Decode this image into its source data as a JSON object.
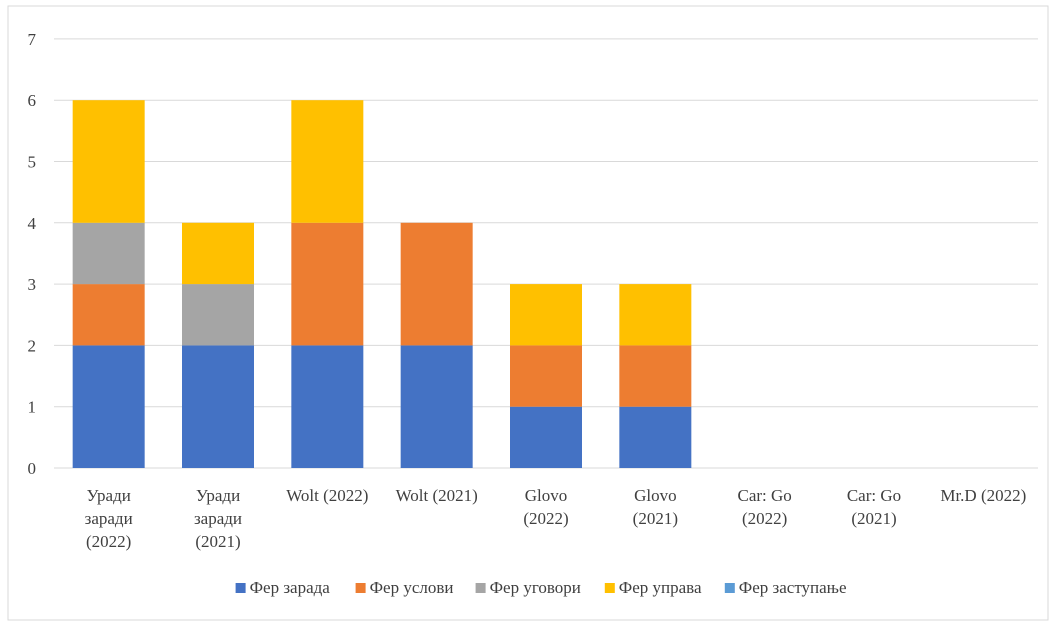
{
  "chart_data": {
    "type": "bar",
    "stacked": true,
    "categories": [
      [
        "Уради",
        "заради",
        "(2022)"
      ],
      [
        "Уради",
        "заради",
        "(2021)"
      ],
      [
        "Wolt (2022)"
      ],
      [
        "Wolt (2021)"
      ],
      [
        "Glovo",
        "(2022)"
      ],
      [
        "Glovo",
        "(2021)"
      ],
      [
        "Car: Go",
        "(2022)"
      ],
      [
        "Car: Go",
        "(2021)"
      ],
      [
        "Mr.D (2022)"
      ]
    ],
    "series": [
      {
        "name": "Фер зарада",
        "color": "#4472C4",
        "values": [
          2,
          2,
          2,
          2,
          1,
          1,
          0,
          0,
          0
        ]
      },
      {
        "name": "Фер услови",
        "color": "#ED7D31",
        "values": [
          1,
          0,
          2,
          2,
          1,
          1,
          0,
          0,
          0
        ]
      },
      {
        "name": "Фер уговори",
        "color": "#A5A5A5",
        "values": [
          1,
          1,
          0,
          0,
          0,
          0,
          0,
          0,
          0
        ]
      },
      {
        "name": "Фер управа",
        "color": "#FFC000",
        "values": [
          2,
          1,
          2,
          0,
          1,
          1,
          0,
          0,
          0
        ]
      },
      {
        "name": "Фер заступање",
        "color": "#5B9BD5",
        "values": [
          0,
          0,
          0,
          0,
          0,
          0,
          0,
          0,
          0
        ]
      }
    ],
    "ylim": [
      0,
      7
    ],
    "yticks": [
      0,
      1,
      2,
      3,
      4,
      5,
      6,
      7
    ],
    "grid": true,
    "legend": "bottom"
  }
}
